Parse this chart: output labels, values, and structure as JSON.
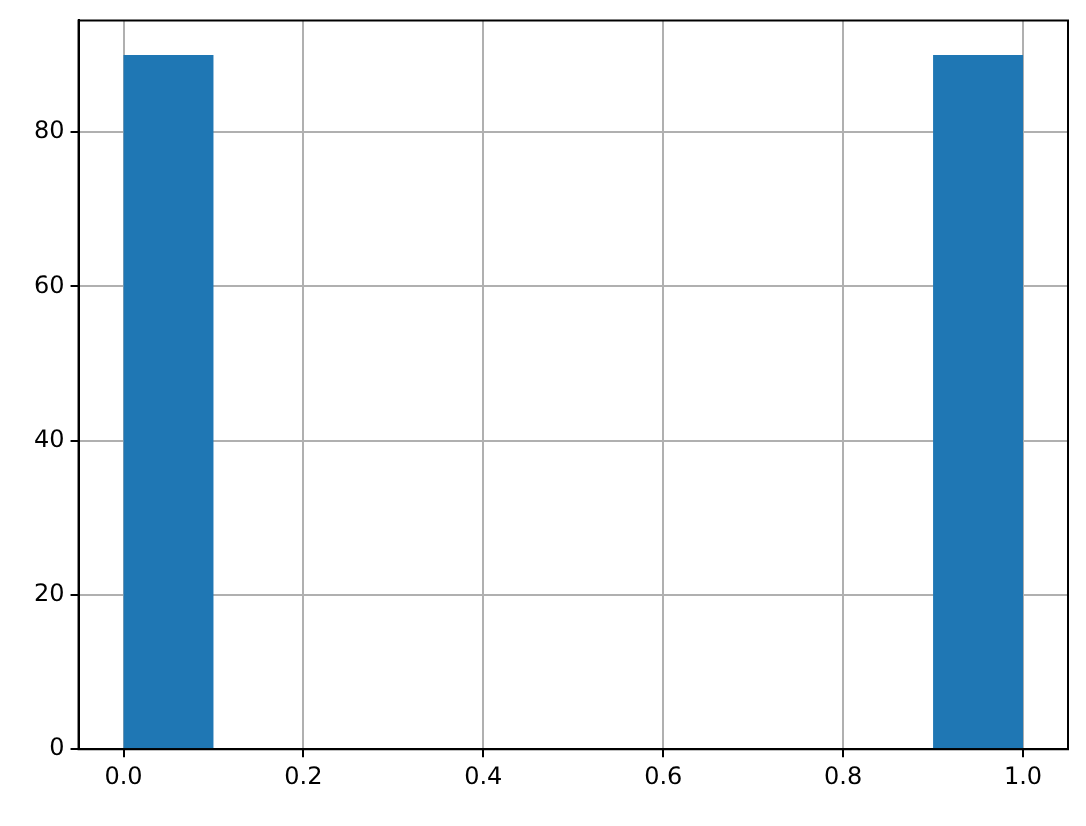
{
  "chart_data": {
    "type": "histogram",
    "bins": [
      0,
      0.1,
      0.2,
      0.3,
      0.4,
      0.5,
      0.6,
      0.7,
      0.8,
      0.9,
      1.0
    ],
    "values": [
      90,
      0,
      0,
      0,
      0,
      0,
      0,
      0,
      0,
      90
    ],
    "color": "#1f77b4",
    "xlim": [
      -0.05,
      1.05
    ],
    "ylim": [
      0,
      94.5
    ],
    "xticks": [
      {
        "value": 0,
        "label": "0.0"
      },
      {
        "value": 0.2,
        "label": "0.2"
      },
      {
        "value": 0.4,
        "label": "0.4"
      },
      {
        "value": 0.6,
        "label": "0.6"
      },
      {
        "value": 0.8,
        "label": "0.8"
      },
      {
        "value": 1,
        "label": "1.0"
      }
    ],
    "yticks": [
      0,
      20,
      40,
      60,
      80
    ],
    "grid": true
  }
}
